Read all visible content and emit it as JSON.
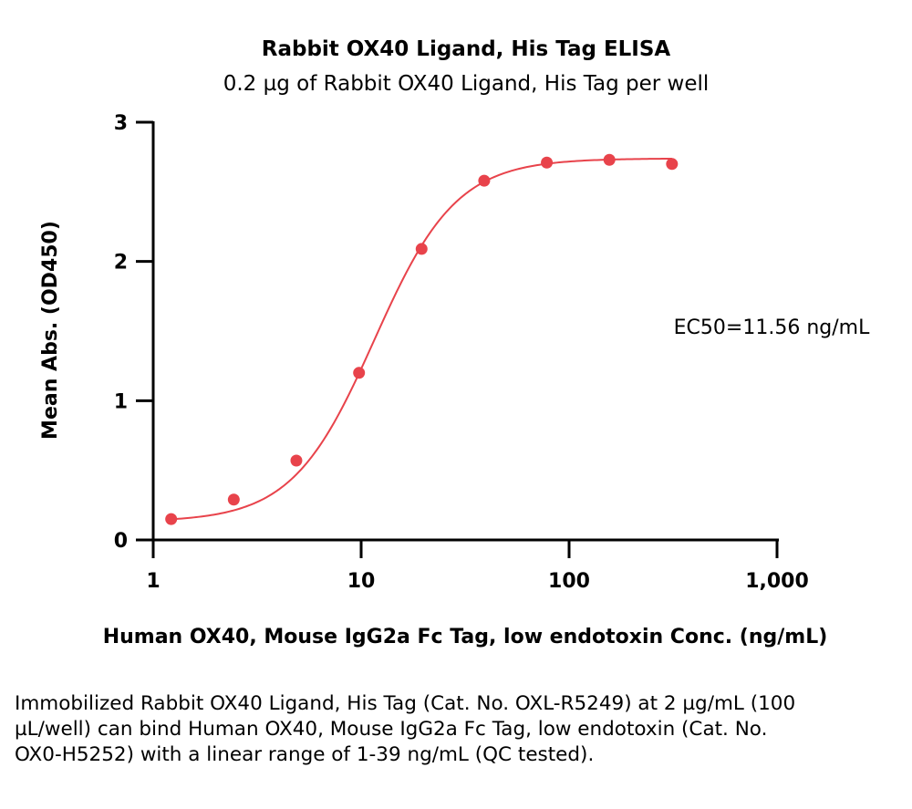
{
  "chart_data": {
    "type": "scatter",
    "title": "Rabbit OX40 Ligand, His Tag ELISA",
    "subtitle": "0.2 µg of Rabbit OX40 Ligand, His Tag per well",
    "xlabel": "Human OX40, Mouse IgG2a Fc Tag, low endotoxin  Conc. (ng/mL)",
    "ylabel": "Mean Abs. (OD450)",
    "x_scale": "log",
    "xlim": [
      1,
      1000
    ],
    "ylim": [
      0,
      3
    ],
    "x_ticks": [
      1,
      10,
      100,
      1000
    ],
    "x_tick_labels": [
      "1",
      "10",
      "100",
      "1,000"
    ],
    "y_ticks": [
      0,
      1,
      2,
      3
    ],
    "y_tick_labels": [
      "0",
      "1",
      "2",
      "3"
    ],
    "color": "#e8434b",
    "series": [
      {
        "x": [
          1.22,
          2.44,
          4.88,
          9.77,
          19.53,
          39.06,
          78.13,
          156.25,
          312.5
        ],
        "y": [
          0.15,
          0.29,
          0.57,
          1.2,
          2.09,
          2.58,
          2.71,
          2.73,
          2.7
        ]
      }
    ],
    "fit": {
      "model": "4PL",
      "bottom": 0.13,
      "top": 2.74,
      "ec50": 11.56,
      "hill": 2.2
    },
    "annotation": "EC50=11.56 ng/mL"
  },
  "caption": "Immobilized Rabbit OX40 Ligand, His Tag (Cat. No. OXL-R5249) at 2 µg/mL (100 µL/well) can bind Human OX40, Mouse IgG2a Fc Tag, low endotoxin (Cat. No. OX0-H5252) with a linear range of 1-39 ng/mL (QC tested)."
}
